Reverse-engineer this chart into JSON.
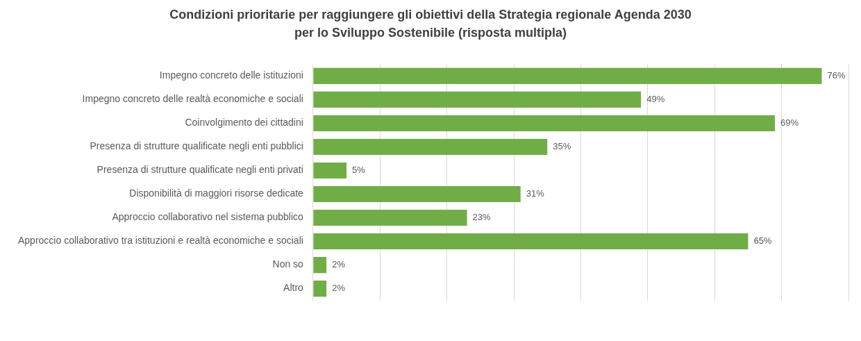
{
  "chart_data": {
    "type": "bar",
    "orientation": "horizontal",
    "title": "Condizioni prioritarie per raggiungere gli obiettivi della Strategia regionale Agenda 2030 per lo Sviluppo Sostenibile (risposta multipla)",
    "categories": [
      "Impegno concreto delle istituzioni",
      "Impegno concreto delle realtà economiche e sociali",
      "Coinvolgimento dei cittadini",
      "Presenza di strutture qualificate negli enti pubblici",
      "Presenza di strutture qualificate negli enti privati",
      "Disponibilità di maggiori risorse dedicate",
      "Approccio collaborativo nel sistema pubblico",
      "Approccio collaborativo tra istituzioni e realtà economiche e sociali",
      "Non so",
      "Altro"
    ],
    "values": [
      76,
      49,
      69,
      35,
      5,
      31,
      23,
      65,
      2,
      2
    ],
    "value_labels": [
      "76%",
      "49%",
      "69%",
      "35%",
      "5%",
      "31%",
      "23%",
      "65%",
      "2%",
      "2%"
    ],
    "color": "#70ad47",
    "xlim": [
      0,
      80
    ],
    "xticks": [
      {
        "value": 0,
        "label": null
      },
      {
        "value": 10,
        "label": null
      },
      {
        "value": 20,
        "label": null
      },
      {
        "value": 30,
        "label": null
      },
      {
        "value": 40,
        "label": null
      },
      {
        "value": 50,
        "label": null
      },
      {
        "value": 60,
        "label": null
      },
      {
        "value": 70,
        "label": null
      },
      {
        "value": 80,
        "label": null
      }
    ],
    "tick_labels": "y",
    "grid": "x",
    "legend": false
  }
}
